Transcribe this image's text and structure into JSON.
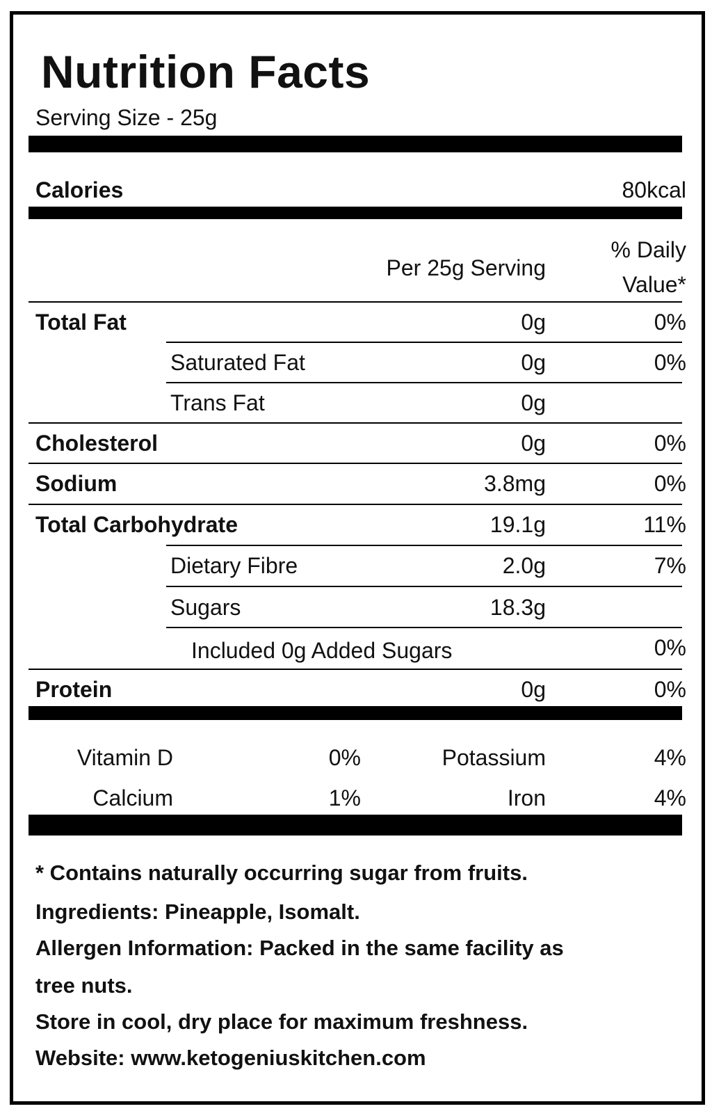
{
  "label": {
    "title": "Nutrition Facts",
    "serving_size": "Serving Size - 25g",
    "calories_label": "Calories",
    "calories_value": "80kcal",
    "col_per_serving": "Per 25g Serving",
    "col_daily_value_1": "% Daily",
    "col_daily_value_2": "Value*",
    "nutrients": [
      {
        "name": "Total Fat",
        "amount": "0g",
        "dv": "0%"
      },
      {
        "name": "Saturated Fat",
        "amount": "0g",
        "dv": "0%"
      },
      {
        "name": "Trans Fat",
        "amount": "0g",
        "dv": ""
      },
      {
        "name": "Cholesterol",
        "amount": "0g",
        "dv": "0%"
      },
      {
        "name": "Sodium",
        "amount": "3.8mg",
        "dv": "0%"
      },
      {
        "name": "Total Carbohydrate",
        "amount": "19.1g",
        "dv": "11%"
      },
      {
        "name": "Dietary Fibre",
        "amount": "2.0g",
        "dv": "7%"
      },
      {
        "name": "Sugars",
        "amount": "18.3g",
        "dv": ""
      },
      {
        "name": "Included 0g Added Sugars",
        "amount": "",
        "dv": "0%"
      },
      {
        "name": "Protein",
        "amount": "0g",
        "dv": "0%"
      }
    ],
    "micros": [
      {
        "name": "Vitamin D",
        "dv": "0%"
      },
      {
        "name": "Potassium",
        "dv": "4%"
      },
      {
        "name": "Calcium",
        "dv": "1%"
      },
      {
        "name": "Iron",
        "dv": "4%"
      }
    ],
    "footer": {
      "note": "* Contains naturally occurring sugar from fruits.",
      "ingredients": "Ingredients: Pineapple, Isomalt.",
      "allergen_1": "Allergen Information: Packed in the same facility as",
      "allergen_2": "tree nuts.",
      "storage": "Store in cool, dry place for maximum freshness.",
      "website": "Website: www.ketogeniuskitchen.com"
    }
  }
}
